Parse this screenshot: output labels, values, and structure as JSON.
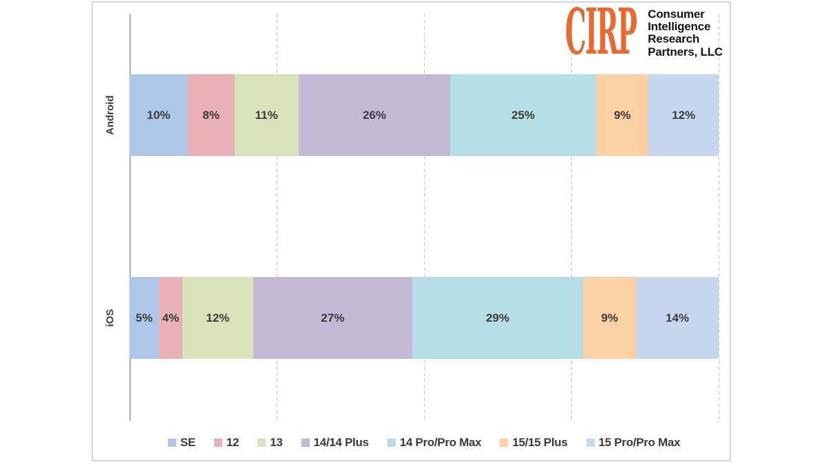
{
  "logo": {
    "brand": "CIRP",
    "brand_color": "#E8692F",
    "tagline_lines": [
      "Consumer",
      "Intelligence",
      "Research",
      "Partners, LLC"
    ]
  },
  "chart_data": {
    "type": "bar",
    "subtype": "horizontal-stacked",
    "categories": [
      "Android",
      "iOS"
    ],
    "series": [
      {
        "name": "SE",
        "color": "#aec7e8",
        "values": [
          10,
          5
        ]
      },
      {
        "name": "12",
        "color": "#e9b1b6",
        "values": [
          8,
          4
        ]
      },
      {
        "name": "13",
        "color": "#d9e2ba",
        "values": [
          11,
          12
        ]
      },
      {
        "name": "14/14 Plus",
        "color": "#c4b8d7",
        "values": [
          26,
          27
        ]
      },
      {
        "name": "14 Pro/Pro Max",
        "color": "#b6dce5",
        "values": [
          25,
          29
        ]
      },
      {
        "name": "15/15 Plus",
        "color": "#fbd0a4",
        "values": [
          9,
          9
        ]
      },
      {
        "name": "15 Pro/Pro Max",
        "color": "#c8d5ef",
        "values": [
          12,
          14
        ]
      }
    ],
    "value_suffix": "%",
    "xlim": [
      0,
      100
    ],
    "gridlines_at": [
      25,
      50,
      75,
      100
    ],
    "grid": true,
    "legend_position": "bottom"
  }
}
